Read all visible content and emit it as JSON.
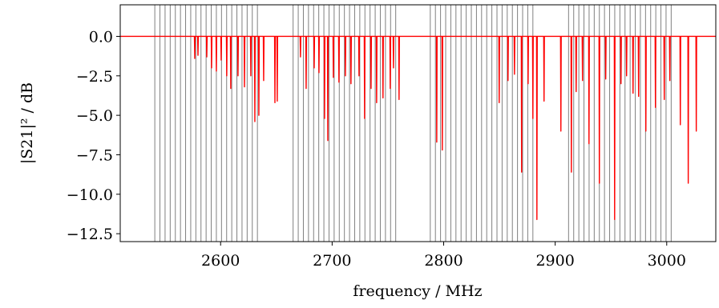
{
  "chart_data": {
    "type": "line",
    "xlabel": "frequency / MHz",
    "ylabel": "|S21|² / dB",
    "xlim": [
      2510,
      3044
    ],
    "ylim": [
      -13,
      2
    ],
    "xticks": [
      2600,
      2700,
      2800,
      2900,
      3000
    ],
    "yticks": [
      {
        "value": 0,
        "label": "0.0"
      },
      {
        "value": -2.5,
        "label": "−2.5"
      },
      {
        "value": -5,
        "label": "−5.0"
      },
      {
        "value": -7.5,
        "label": "−7.5"
      },
      {
        "value": -10,
        "label": "−10.0"
      },
      {
        "value": -12.5,
        "label": "−12.5"
      }
    ],
    "vline_color": "#808080",
    "vlines": [
      2541.0,
      2545.6,
      2550.2,
      2554.8,
      2559.4,
      2564.0,
      2568.6,
      2573.2,
      2577.8,
      2582.4,
      2587.0,
      2591.6,
      2596.2,
      2600.8,
      2605.4,
      2610.0,
      2614.6,
      2619.2,
      2623.8,
      2628.4,
      2633.0,
      2665.0,
      2669.6,
      2674.2,
      2678.8,
      2683.4,
      2688.0,
      2692.6,
      2697.2,
      2701.8,
      2706.4,
      2711.0,
      2715.6,
      2720.2,
      2724.8,
      2729.4,
      2734.0,
      2738.6,
      2743.2,
      2747.8,
      2752.4,
      2757.0,
      2788.0,
      2792.6,
      2797.2,
      2801.8,
      2806.4,
      2811.0,
      2815.6,
      2820.2,
      2824.8,
      2829.4,
      2834.0,
      2838.6,
      2843.2,
      2847.8,
      2852.4,
      2857.0,
      2861.6,
      2866.2,
      2870.8,
      2875.4,
      2880.0,
      2912.0,
      2916.6,
      2921.2,
      2925.8,
      2930.4,
      2935.0,
      2939.6,
      2944.2,
      2948.8,
      2953.4,
      2958.0,
      2962.6,
      2967.2,
      2971.8,
      2976.4,
      2981.0,
      2985.6,
      2990.2,
      2994.8,
      2999.4,
      3004.0
    ],
    "x": [
      2510,
      2576.5,
      2576.8,
      2577.1,
      2579.4,
      2579.7,
      2580.0,
      2587.3,
      2587.6,
      2587.9,
      2591.6,
      2591.9,
      2592.2,
      2595.9,
      2596.2,
      2596.5,
      2600.2,
      2600.5,
      2600.8,
      2605.2,
      2605.5,
      2605.8,
      2608.8,
      2609.1,
      2609.4,
      2615.3,
      2615.6,
      2615.9,
      2621.1,
      2621.4,
      2621.7,
      2626.8,
      2627.1,
      2627.4,
      2630.4,
      2630.7,
      2631.0,
      2634.0,
      2634.3,
      2634.6,
      2638.3,
      2638.6,
      2638.9,
      2648.4,
      2648.7,
      2649.0,
      2650.5,
      2650.8,
      2651.1,
      2671.3,
      2671.6,
      2671.9,
      2676.4,
      2676.7,
      2677.0,
      2683.6,
      2683.9,
      2684.2,
      2687.9,
      2688.2,
      2688.5,
      2692.9,
      2693.2,
      2693.5,
      2695.8,
      2696.1,
      2696.4,
      2700.8,
      2701.1,
      2701.4,
      2705.8,
      2706.1,
      2706.4,
      2711.6,
      2711.9,
      2712.2,
      2716.6,
      2716.9,
      2717.2,
      2723.8,
      2724.1,
      2724.4,
      2728.8,
      2729.1,
      2729.4,
      2734.6,
      2734.9,
      2735.2,
      2739.6,
      2739.9,
      2740.2,
      2745.3,
      2745.6,
      2745.9,
      2751.8,
      2752.1,
      2752.4,
      2754.7,
      2755.0,
      2755.3,
      2759.7,
      2760.0,
      2760.3,
      2793.5,
      2793.8,
      2794.1,
      2798.5,
      2798.8,
      2799.1,
      2849.5,
      2849.8,
      2850.1,
      2857.4,
      2857.7,
      2858.0,
      2863.2,
      2863.5,
      2863.8,
      2869.6,
      2869.9,
      2870.2,
      2875.4,
      2875.7,
      2876.0,
      2879.7,
      2880.0,
      2880.3,
      2883.3,
      2883.6,
      2883.9,
      2889.7,
      2890.0,
      2890.3,
      2904.8,
      2905.1,
      2905.4,
      2914.2,
      2914.5,
      2914.8,
      2918.5,
      2918.8,
      2919.1,
      2924.2,
      2924.5,
      2924.8,
      2930.0,
      2930.3,
      2930.6,
      2939.3,
      2939.6,
      2939.9,
      2945.0,
      2945.3,
      2945.6,
      2953.0,
      2953.3,
      2953.6,
      2958.7,
      2959.0,
      2959.3,
      2963.7,
      2964.0,
      2964.3,
      2969.5,
      2969.8,
      2970.1,
      2974.5,
      2974.8,
      2975.1,
      2981.0,
      2981.3,
      2981.6,
      2989.6,
      2989.9,
      2990.2,
      2997.5,
      2997.8,
      2998.1,
      3002.5,
      3002.8,
      3003.1,
      3011.9,
      3012.2,
      3012.5,
      3019.0,
      3019.3,
      3019.6,
      3026.2,
      3026.5,
      3026.8,
      3044
    ],
    "series": [
      {
        "color": "#ff0000",
        "values": [
          0,
          0,
          -1.4,
          0,
          0,
          -1.2,
          0,
          0,
          -1.3,
          0,
          0,
          -2.0,
          0,
          0,
          -2.2,
          0,
          0,
          -1.5,
          0,
          0,
          -2.5,
          0,
          0,
          -3.3,
          0,
          0,
          -2.5,
          0,
          0,
          -3.2,
          0,
          0,
          -2.5,
          0,
          0,
          -5.4,
          0,
          0,
          -5.0,
          0,
          0,
          -2.8,
          0,
          0,
          -4.2,
          0,
          0,
          -4.1,
          0,
          0,
          -1.3,
          0,
          0,
          -3.3,
          0,
          0,
          -2.0,
          0,
          0,
          -2.3,
          0,
          0,
          -5.2,
          0,
          0,
          -6.6,
          0,
          0,
          -2.6,
          0,
          0,
          -2.9,
          0,
          0,
          -2.5,
          0,
          0,
          -3.0,
          0,
          0,
          -2.5,
          0,
          0,
          -5.2,
          0,
          0,
          -3.3,
          0,
          0,
          -4.2,
          0,
          0,
          -3.9,
          0,
          0,
          -3.3,
          0,
          0,
          -2.0,
          0,
          0,
          -4.0,
          0,
          0,
          -6.7,
          0,
          0,
          -7.2,
          0,
          0,
          -4.2,
          0,
          0,
          -2.8,
          0,
          0,
          -2.4,
          0,
          0,
          -8.6,
          0,
          0,
          -3.0,
          0,
          0,
          -5.2,
          0,
          0,
          -11.6,
          0,
          0,
          -4.1,
          0,
          0,
          -6.0,
          0,
          0,
          -8.6,
          0,
          0,
          -3.5,
          0,
          0,
          -2.8,
          0,
          0,
          -6.8,
          0,
          0,
          -9.3,
          0,
          0,
          -2.7,
          0,
          0,
          -11.6,
          0,
          0,
          -3.0,
          0,
          0,
          -2.5,
          0,
          0,
          -3.6,
          0,
          0,
          -3.8,
          0,
          0,
          -6.0,
          0,
          0,
          -4.5,
          0,
          0,
          -4.0,
          0,
          0,
          -2.8,
          0,
          0,
          -5.6,
          0,
          0,
          -9.3,
          0,
          0,
          -6.0,
          0,
          0
        ]
      }
    ]
  }
}
